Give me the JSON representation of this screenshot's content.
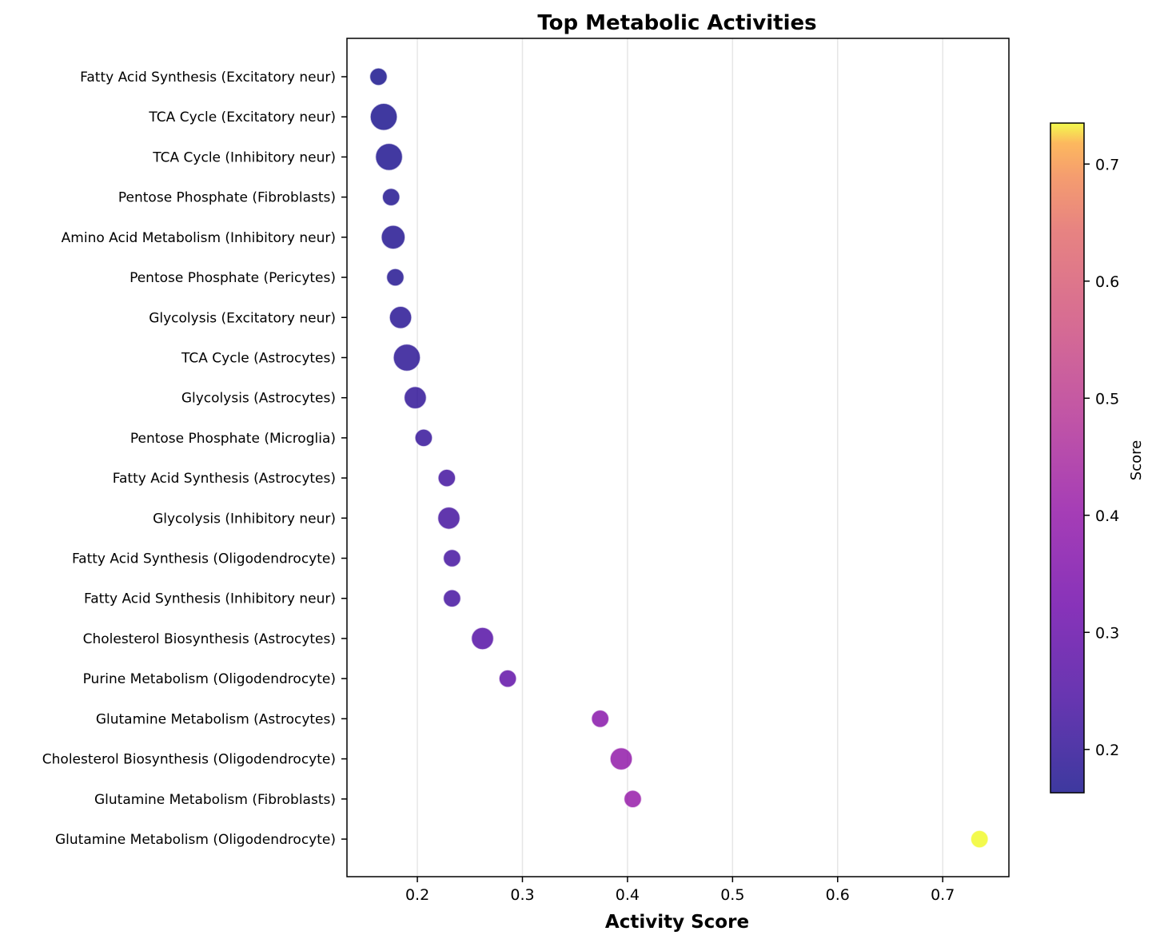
{
  "chart_data": {
    "type": "scatter",
    "title": "Top Metabolic Activities",
    "xlabel": "Activity Score",
    "ylabel": "",
    "xlim": [
      0.133,
      0.763
    ],
    "xticks": [
      0.2,
      0.3,
      0.4,
      0.5,
      0.6,
      0.7
    ],
    "xtick_labels": [
      "0.2",
      "0.3",
      "0.4",
      "0.5",
      "0.6",
      "0.7"
    ],
    "grid": "vertical",
    "colormap": "plasma",
    "colorbar": {
      "label": "Score",
      "range": [
        0.163,
        0.735
      ],
      "ticks": [
        0.2,
        0.3,
        0.4,
        0.5,
        0.6,
        0.7
      ],
      "tick_labels": [
        "0.2",
        "0.3",
        "0.4",
        "0.5",
        "0.6",
        "0.7"
      ]
    },
    "points": [
      {
        "label": "Fatty Acid Synthesis (Excitatory neur)",
        "x": 0.163,
        "size": "small"
      },
      {
        "label": "TCA Cycle (Excitatory neur)",
        "x": 0.168,
        "size": "large"
      },
      {
        "label": "TCA Cycle (Inhibitory neur)",
        "x": 0.173,
        "size": "large"
      },
      {
        "label": "Pentose Phosphate (Fibroblasts)",
        "x": 0.175,
        "size": "small"
      },
      {
        "label": "Amino Acid Metabolism (Inhibitory neur)",
        "x": 0.177,
        "size": "medium-large"
      },
      {
        "label": "Pentose Phosphate (Pericytes)",
        "x": 0.179,
        "size": "small"
      },
      {
        "label": "Glycolysis (Excitatory neur)",
        "x": 0.184,
        "size": "medium"
      },
      {
        "label": "TCA Cycle (Astrocytes)",
        "x": 0.19,
        "size": "large"
      },
      {
        "label": "Glycolysis (Astrocytes)",
        "x": 0.198,
        "size": "medium"
      },
      {
        "label": "Pentose Phosphate (Microglia)",
        "x": 0.206,
        "size": "small"
      },
      {
        "label": "Fatty Acid Synthesis (Astrocytes)",
        "x": 0.228,
        "size": "small"
      },
      {
        "label": "Glycolysis (Inhibitory neur)",
        "x": 0.23,
        "size": "medium"
      },
      {
        "label": "Fatty Acid Synthesis (Oligodendrocyte)",
        "x": 0.233,
        "size": "small"
      },
      {
        "label": "Fatty Acid Synthesis (Inhibitory neur)",
        "x": 0.233,
        "size": "small"
      },
      {
        "label": "Cholesterol Biosynthesis (Astrocytes)",
        "x": 0.262,
        "size": "medium"
      },
      {
        "label": "Purine Metabolism (Oligodendrocyte)",
        "x": 0.286,
        "size": "small"
      },
      {
        "label": "Glutamine Metabolism (Astrocytes)",
        "x": 0.374,
        "size": "small"
      },
      {
        "label": "Cholesterol Biosynthesis (Oligodendrocyte)",
        "x": 0.394,
        "size": "medium"
      },
      {
        "label": "Glutamine Metabolism (Fibroblasts)",
        "x": 0.405,
        "size": "small"
      },
      {
        "label": "Glutamine Metabolism (Oligodendrocyte)",
        "x": 0.735,
        "size": "small"
      }
    ]
  }
}
